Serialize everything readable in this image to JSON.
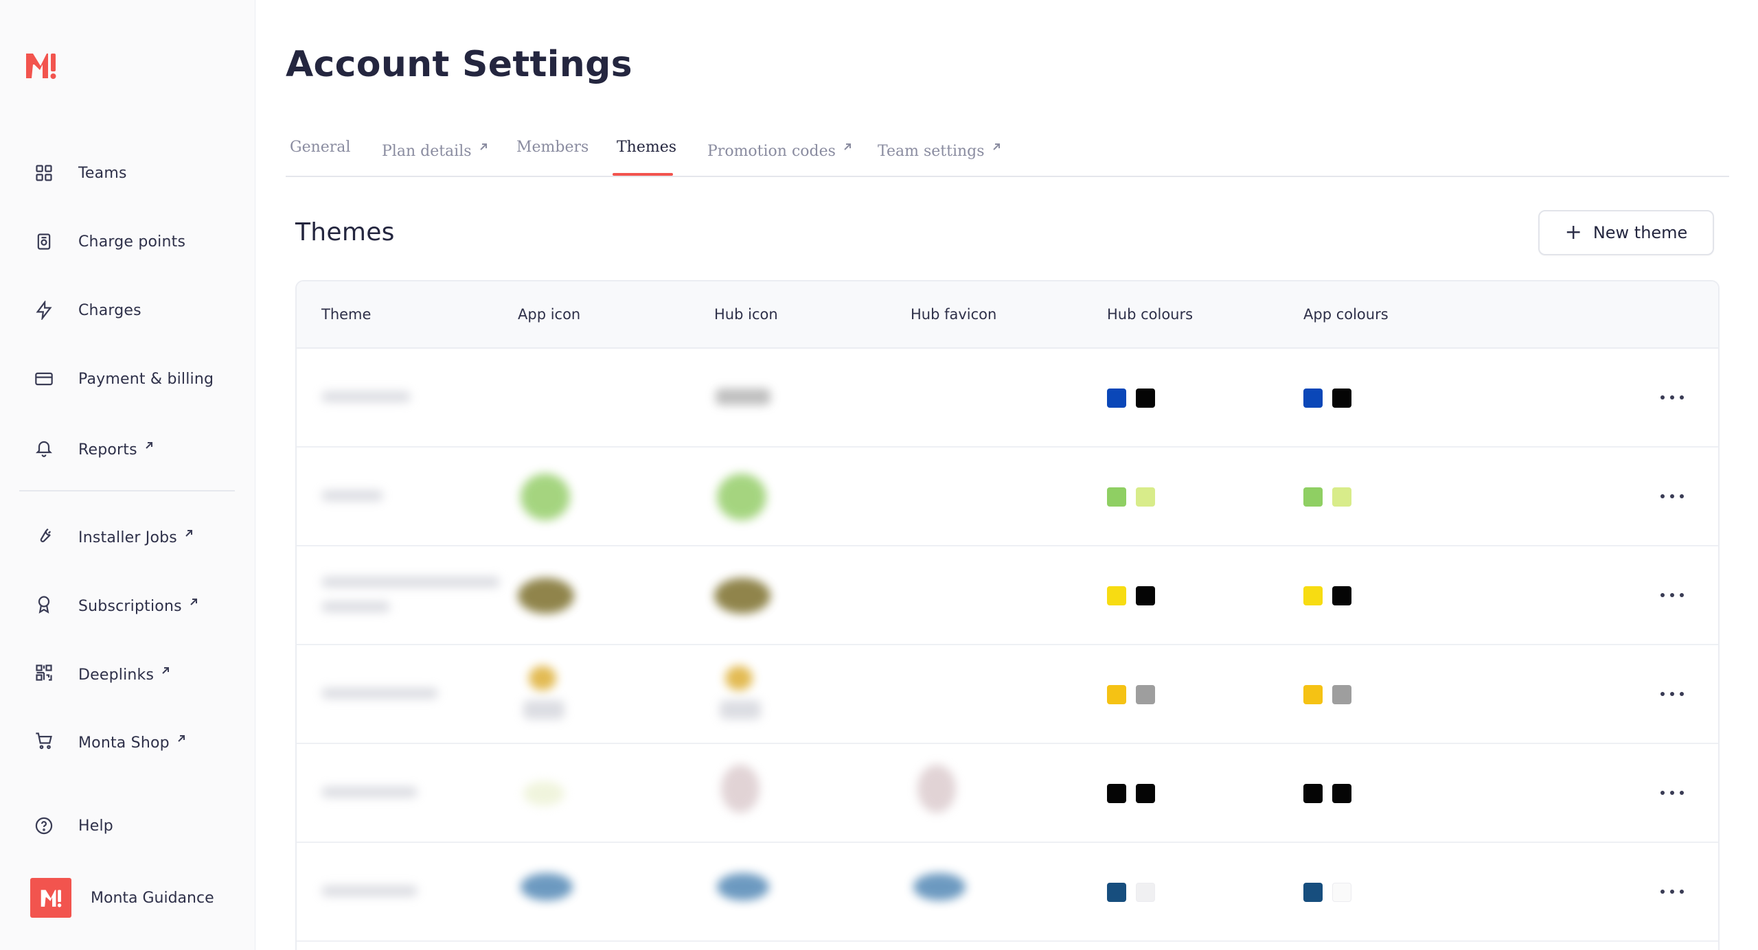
{
  "app": {
    "logo": "monta-logo"
  },
  "sidebar": {
    "items": [
      {
        "label": "Teams",
        "icon": "grid-icon",
        "external": false
      },
      {
        "label": "Charge points",
        "icon": "charge-point-icon",
        "external": false
      },
      {
        "label": "Charges",
        "icon": "bolt-icon",
        "external": false
      },
      {
        "label": "Payment & billing",
        "icon": "card-icon",
        "external": false
      },
      {
        "label": "Reports",
        "icon": "bell-icon",
        "external": true
      },
      {
        "label": "Installer Jobs",
        "icon": "wrench-icon",
        "external": true
      },
      {
        "label": "Subscriptions",
        "icon": "award-icon",
        "external": true
      },
      {
        "label": "Deeplinks",
        "icon": "qr-icon",
        "external": true
      },
      {
        "label": "Monta Shop",
        "icon": "cart-icon",
        "external": true
      },
      {
        "label": "Help",
        "icon": "help-circle-icon",
        "external": false
      }
    ],
    "guidance": {
      "label": "Monta Guidance",
      "badge": "M!"
    }
  },
  "header": {
    "title": "Account Settings"
  },
  "tabs": [
    {
      "label": "General",
      "external": false,
      "active": false
    },
    {
      "label": "Plan details",
      "external": true,
      "active": false
    },
    {
      "label": "Members",
      "external": false,
      "active": false
    },
    {
      "label": "Themes",
      "external": false,
      "active": true
    },
    {
      "label": "Promotion codes",
      "external": true,
      "active": false
    },
    {
      "label": "Team settings",
      "external": true,
      "active": false
    }
  ],
  "themes": {
    "title": "Themes",
    "new_button": "New theme",
    "columns": [
      "Theme",
      "App icon",
      "Hub icon",
      "Hub favicon",
      "Hub colours",
      "App colours"
    ],
    "rows": [
      {
        "hub_colours": [
          "#0a47b8",
          "#050505"
        ],
        "app_colours": [
          "#0a47b8",
          "#050505"
        ]
      },
      {
        "hub_colours": [
          "#8fcf63",
          "#d8ec8a"
        ],
        "app_colours": [
          "#8fcf63",
          "#d8ec8a"
        ]
      },
      {
        "hub_colours": [
          "#f7dc12",
          "#050505"
        ],
        "app_colours": [
          "#f7dc12",
          "#050505"
        ]
      },
      {
        "hub_colours": [
          "#f5c214",
          "#9e9e9e"
        ],
        "app_colours": [
          "#f5c214",
          "#9e9e9e"
        ]
      },
      {
        "hub_colours": [
          "#050505",
          "#050505"
        ],
        "app_colours": [
          "#050505",
          "#050505"
        ]
      },
      {
        "hub_colours": [
          "#174e7e",
          "#f0f0f2"
        ],
        "app_colours": [
          "#174e7e",
          "#fafafa"
        ]
      }
    ]
  },
  "colors": {
    "accent": "#f2544e",
    "text": "#24263f",
    "muted": "#8a8ca0"
  }
}
